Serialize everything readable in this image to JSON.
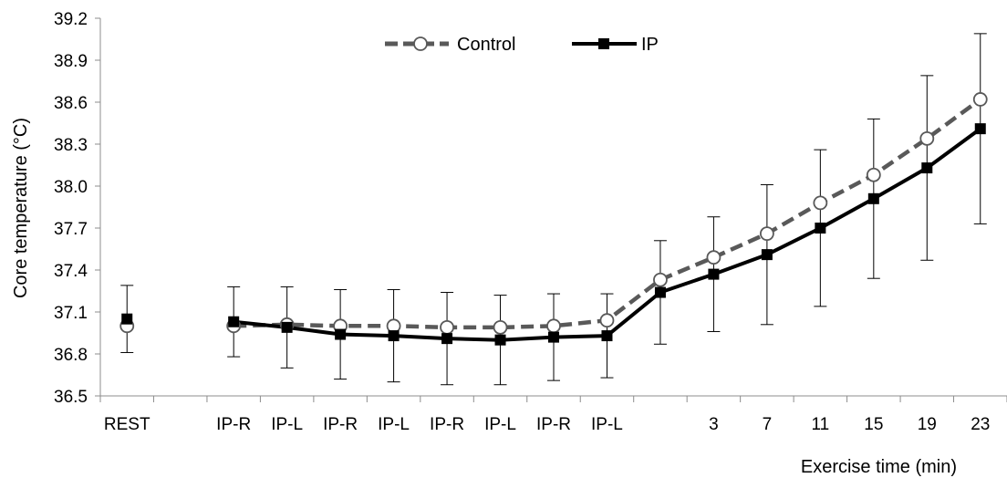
{
  "chart_data": {
    "type": "line",
    "title": "",
    "xlabel": "Exercise time (min)",
    "ylabel": "Core temperature (°C)",
    "ylim": [
      36.5,
      39.2
    ],
    "yticks": [
      "36.5",
      "36.8",
      "37.1",
      "37.4",
      "37.7",
      "38.0",
      "38.3",
      "38.6",
      "38.9",
      "39.2"
    ],
    "categories": [
      "REST",
      "",
      "IP-R",
      "IP-L",
      "IP-R",
      "IP-L",
      "IP-R",
      "IP-L",
      "IP-R",
      "IP-L",
      "",
      "3",
      "7",
      "11",
      "15",
      "19",
      "23"
    ],
    "grid": false,
    "legend_position": "top-center",
    "series": [
      {
        "name": "Control",
        "style": "dashed",
        "marker": "open-circle",
        "color": "#595959",
        "values": [
          37.0,
          null,
          37.0,
          37.01,
          37.0,
          37.0,
          36.99,
          36.99,
          37.0,
          37.04,
          37.33,
          37.49,
          37.66,
          37.88,
          38.08,
          38.34,
          38.62
        ],
        "error": [
          null,
          null,
          null,
          null,
          null,
          null,
          null,
          null,
          null,
          null,
          null,
          null,
          null,
          null,
          null,
          null,
          null
        ]
      },
      {
        "name": "IP",
        "style": "solid",
        "marker": "filled-square",
        "color": "#000000",
        "values": [
          37.05,
          null,
          37.03,
          36.99,
          36.94,
          36.93,
          36.91,
          36.9,
          36.92,
          36.93,
          37.24,
          37.37,
          37.51,
          37.7,
          37.91,
          38.13,
          38.41
        ],
        "error": [
          0.24,
          null,
          0.25,
          0.29,
          0.32,
          0.33,
          0.33,
          0.32,
          0.31,
          0.3,
          0.37,
          0.41,
          0.5,
          0.56,
          0.57,
          0.66,
          0.68
        ]
      }
    ]
  }
}
